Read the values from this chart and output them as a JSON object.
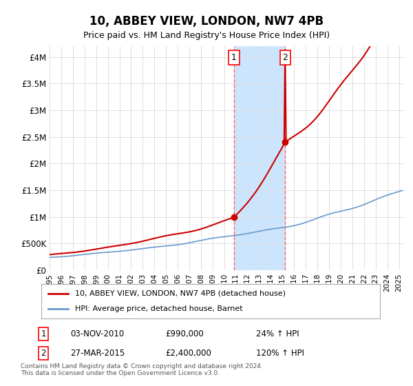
{
  "title": "10, ABBEY VIEW, LONDON, NW7 4PB",
  "subtitle": "Price paid vs. HM Land Registry's House Price Index (HPI)",
  "ylabel_ticks": [
    "£0",
    "£500K",
    "£1M",
    "£1.5M",
    "£2M",
    "£2.5M",
    "£3M",
    "£3.5M",
    "£4M"
  ],
  "ytick_values": [
    0,
    500000,
    1000000,
    1500000,
    2000000,
    2500000,
    3000000,
    3500000,
    4000000
  ],
  "ylim": [
    0,
    4200000
  ],
  "xlim_start": 1995.0,
  "xlim_end": 2025.5,
  "red_line_label": "10, ABBEY VIEW, LONDON, NW7 4PB (detached house)",
  "blue_line_label": "HPI: Average price, detached house, Barnet",
  "sale1_date": 2010.84,
  "sale1_price": 990000,
  "sale1_label": "1",
  "sale1_text": "03-NOV-2010",
  "sale1_price_text": "£990,000",
  "sale1_hpi_text": "24% ↑ HPI",
  "sale2_date": 2015.24,
  "sale2_price": 2400000,
  "sale2_label": "2",
  "sale2_text": "27-MAR-2015",
  "sale2_price_text": "£2,400,000",
  "sale2_hpi_text": "120% ↑ HPI",
  "highlight_color": "#cce5ff",
  "dashed_line_color": "#ff6666",
  "footer_text": "Contains HM Land Registry data © Crown copyright and database right 2024.\nThis data is licensed under the Open Government Licence v3.0.",
  "background_color": "#ffffff",
  "grid_color": "#dddddd",
  "red_line_color": "#cc0000",
  "blue_line_color": "#6699cc"
}
